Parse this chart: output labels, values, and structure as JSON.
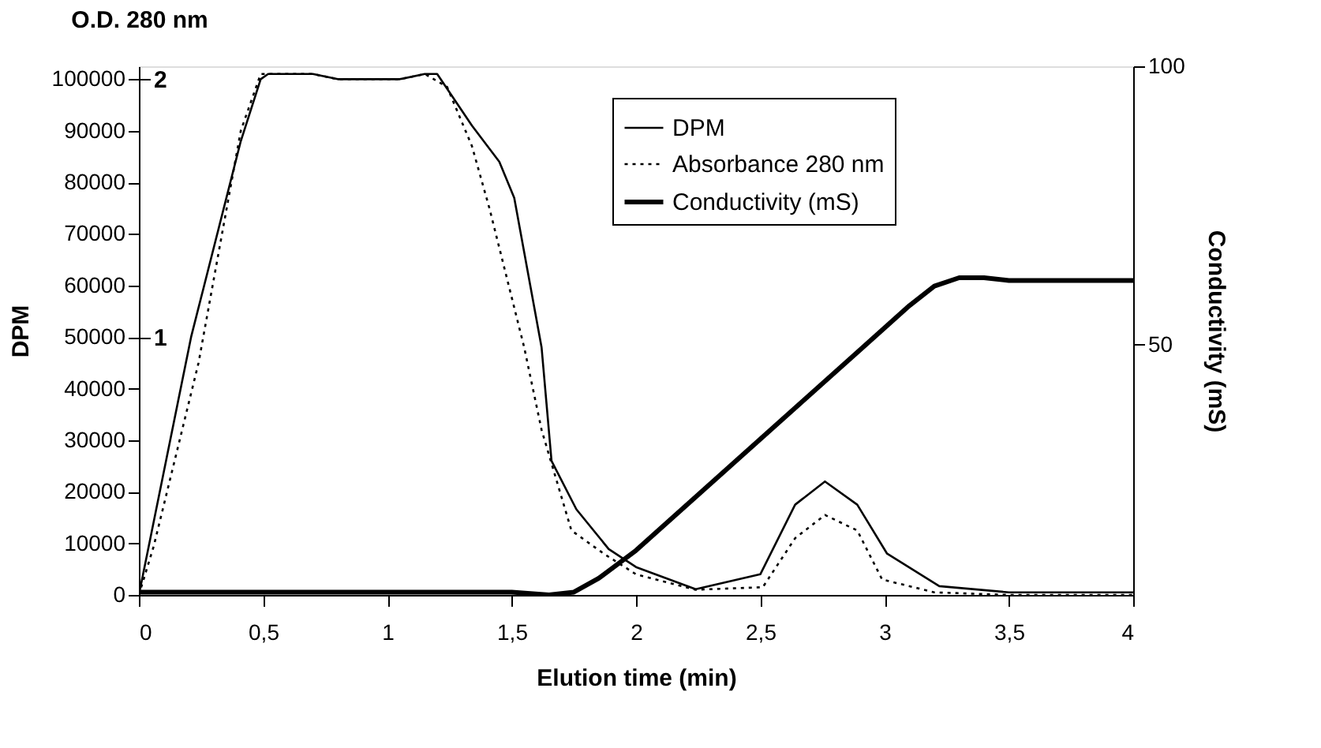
{
  "chart_data": {
    "type": "line",
    "xlabel": "Elution time (min)",
    "ylabel": "DPM",
    "y2label": "Conductivity (mS)",
    "y3label": "O.D. 280 nm",
    "xlim": [
      0,
      4
    ],
    "xticks": [
      0,
      {
        "value": 0.5,
        "label": "0,5"
      },
      1,
      {
        "value": 1.5,
        "label": "1,5"
      },
      2,
      {
        "value": 2.5,
        "label": "2,5"
      },
      3,
      {
        "value": 3.5,
        "label": "3,5"
      },
      4
    ],
    "ylim": [
      0,
      102500
    ],
    "yticks": [
      0,
      10000,
      20000,
      30000,
      40000,
      50000,
      60000,
      70000,
      80000,
      90000,
      100000
    ],
    "y2lim": [
      5,
      100
    ],
    "y2ticks": [
      50,
      100
    ],
    "y3lim": [
      0,
      2.05
    ],
    "y3ticks": [
      1,
      2
    ],
    "grid": false,
    "legend": "top right",
    "marker": "none",
    "series": [
      {
        "name": "DPM",
        "color": "#000000",
        "line_style": "solid",
        "x": [
          0,
          0.21,
          0.41,
          0.49,
          0.52,
          0.7,
          0.8,
          1.05,
          1.15,
          1.2,
          1.34,
          1.45,
          1.51,
          1.62,
          1.66,
          1.76,
          1.89,
          2,
          2.24,
          2.5,
          2.64,
          2.76,
          2.89,
          3.01,
          3.22,
          3.5,
          4
        ],
        "values": [
          0,
          50000,
          88000,
          100000,
          101000,
          101000,
          100000,
          100000,
          101000,
          101000,
          91000,
          84000,
          77000,
          48000,
          26000,
          16600,
          8900,
          5400,
          1100,
          4000,
          17500,
          22000,
          17500,
          8000,
          1700,
          500,
          500
        ]
      },
      {
        "name": "Absorbance 280 nm",
        "color": "#000000",
        "line_style": "dotted",
        "axis": "y3",
        "x": [
          0,
          0.06,
          0.24,
          0.41,
          0.49,
          0.52,
          0.7,
          0.8,
          1.05,
          1.15,
          1.24,
          1.34,
          1.41,
          1.55,
          1.62,
          1.74,
          1.87,
          2,
          2.24,
          2.51,
          2.64,
          2.76,
          2.89,
          2.99,
          3.2,
          3.5,
          4
        ],
        "values": [
          0,
          0.19,
          0.9,
          1.8,
          2.02,
          2.02,
          2.02,
          2,
          2,
          2.02,
          1.97,
          1.74,
          1.5,
          0.96,
          0.64,
          0.25,
          0.16,
          0.08,
          0.02,
          0.03,
          0.22,
          0.31,
          0.25,
          0.06,
          0.01,
          0,
          0
        ]
      },
      {
        "name": "Conductivity (mS)",
        "color": "#000000",
        "line_style": "solid",
        "axis": "y2",
        "x": [
          0,
          1.5,
          1.65,
          1.75,
          1.85,
          2,
          2.5,
          2.9,
          3,
          3.1,
          3.2,
          3.3,
          3.4,
          3.5,
          4
        ],
        "values": [
          5.5,
          5.5,
          5,
          5.5,
          8,
          13,
          33,
          49,
          53,
          57,
          60.5,
          62,
          62,
          61.5,
          61.5
        ]
      }
    ]
  }
}
